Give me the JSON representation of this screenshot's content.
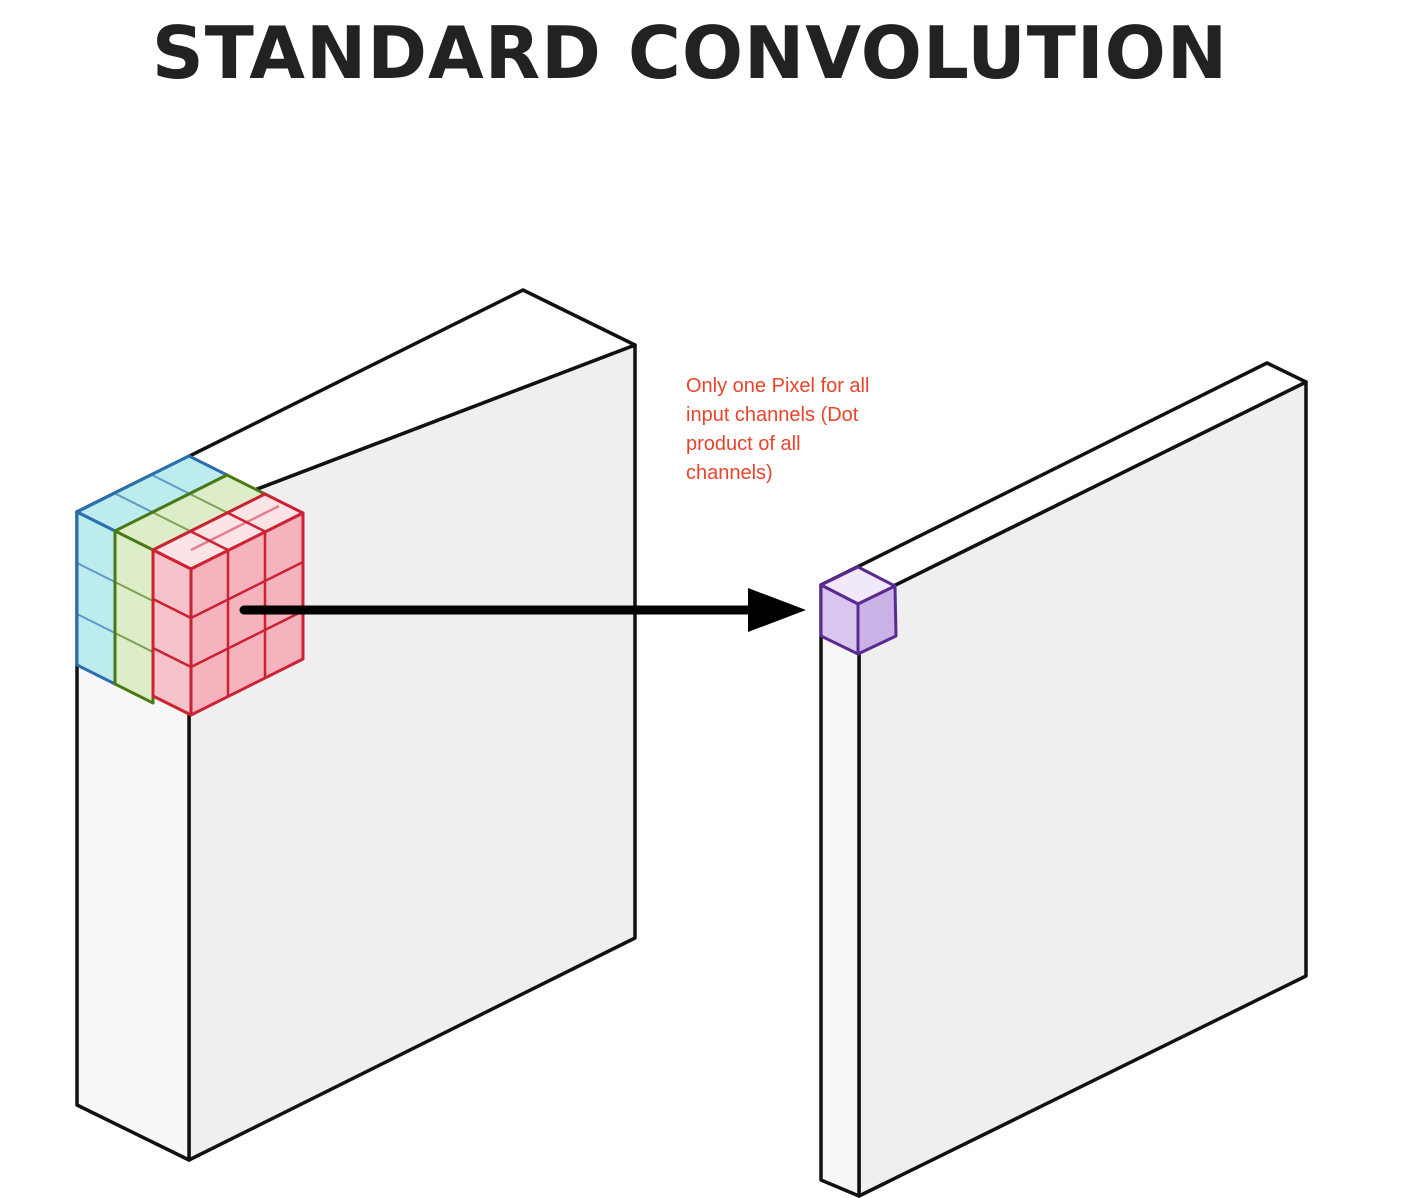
{
  "title": "STANDARD CONVOLUTION",
  "annotation": {
    "lines": [
      "Only one Pixel for all",
      "input channels (Dot",
      "product of all",
      "channels)"
    ]
  },
  "colors": {
    "title": "#222222",
    "annotation": "#e8442c",
    "block_front": "#efefef",
    "block_side": "#f7f7f7",
    "block_top": "#ffffff",
    "block_edge": "#111111",
    "hidden_edge": "#cccccc",
    "kernel_blue_stroke": "#2a6fb0",
    "kernel_blue_fill": "#bdecef",
    "kernel_green_stroke": "#4a7a16",
    "kernel_green_fill": "#dcedc8",
    "kernel_red_stroke": "#cc2233",
    "kernel_red_fill": "#f4b3bd",
    "output_pixel_stroke": "#5b2a91",
    "output_pixel_fill": "#d9c6ee",
    "arrow": "#000000"
  }
}
